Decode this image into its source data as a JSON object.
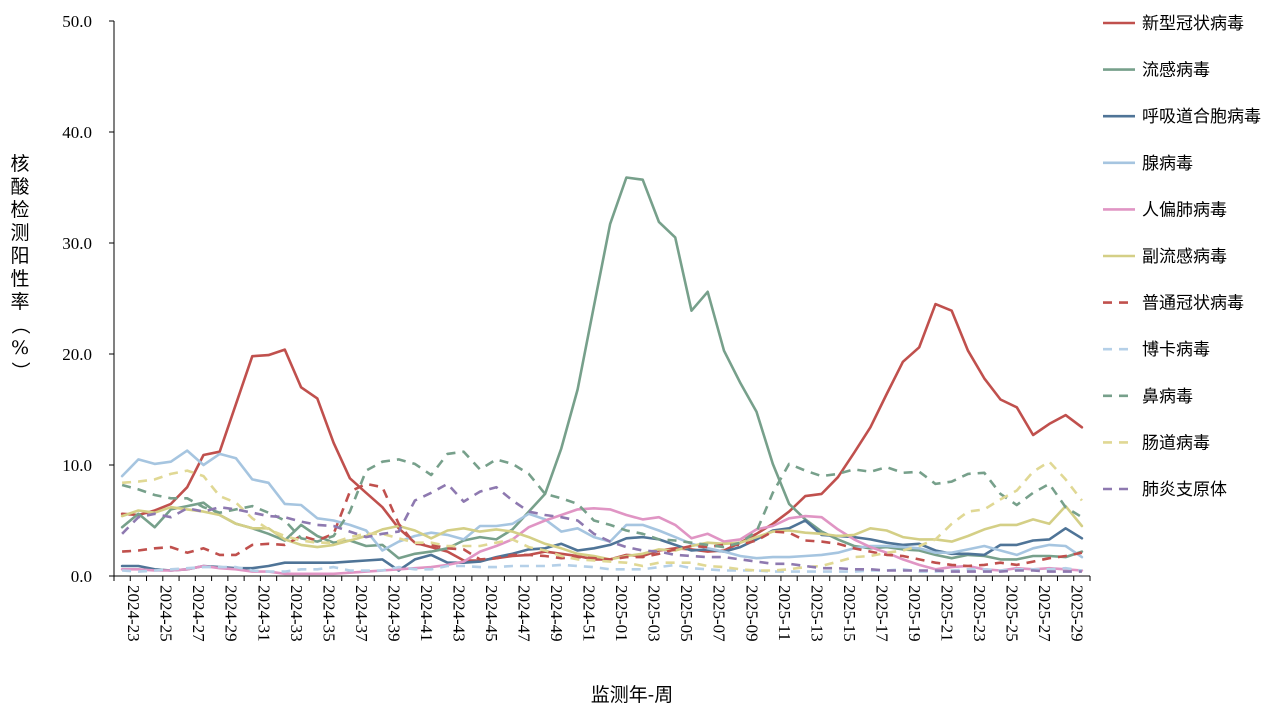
{
  "chart_data": {
    "type": "line",
    "xlabel": "监测年-周",
    "ylabel": "核酸检测阳性率（%）",
    "ylim": [
      0,
      50
    ],
    "yticks": [
      "0.0",
      "10.0",
      "20.0",
      "30.0",
      "40.0",
      "50.0"
    ],
    "x": [
      "2024-23",
      "2024-24",
      "2024-25",
      "2024-26",
      "2024-27",
      "2024-28",
      "2024-29",
      "2024-30",
      "2024-31",
      "2024-32",
      "2024-33",
      "2024-34",
      "2024-35",
      "2024-36",
      "2024-37",
      "2024-38",
      "2024-39",
      "2024-40",
      "2024-41",
      "2024-42",
      "2024-43",
      "2024-44",
      "2024-45",
      "2024-46",
      "2024-47",
      "2024-48",
      "2024-49",
      "2024-50",
      "2024-51",
      "2024-52",
      "2025-01",
      "2025-02",
      "2025-03",
      "2025-04",
      "2025-05",
      "2025-06",
      "2025-07",
      "2025-08",
      "2025-09",
      "2025-10",
      "2025-11",
      "2025-12",
      "2025-13",
      "2025-14",
      "2025-15",
      "2025-16",
      "2025-17",
      "2025-18",
      "2025-19",
      "2025-20",
      "2025-21",
      "2025-22",
      "2025-23",
      "2025-24",
      "2025-25",
      "2025-26",
      "2025-27",
      "2025-28",
      "2025-29",
      "2025-30"
    ],
    "x_tick_labels": [
      "2024-23",
      "2024-25",
      "2024-27",
      "2024-29",
      "2024-31",
      "2024-33",
      "2024-35",
      "2024-37",
      "2024-39",
      "2024-41",
      "2024-43",
      "2024-45",
      "2024-47",
      "2024-49",
      "2024-51",
      "2025-01",
      "2025-03",
      "2025-05",
      "2025-07",
      "2025-09",
      "2025-11",
      "2025-13",
      "2025-15",
      "2025-17",
      "2025-19",
      "2025-21",
      "2025-23",
      "2025-25",
      "2025-27",
      "2025-29"
    ],
    "legend_position": "right",
    "series": [
      {
        "name": "新型冠状病毒",
        "color": "#c0504d",
        "dash": "solid",
        "values": [
          5.6,
          5.5,
          5.9,
          6.5,
          8.0,
          10.9,
          11.2,
          15.5,
          19.8,
          19.9,
          20.4,
          17.0,
          16.0,
          12.0,
          8.8,
          7.5,
          6.2,
          4.3,
          3.0,
          2.6,
          2.2,
          1.4,
          1.4,
          1.6,
          1.8,
          1.9,
          2.2,
          2.0,
          1.8,
          1.5,
          1.5,
          1.9,
          1.8,
          2.3,
          2.5,
          2.4,
          2.2,
          2.3,
          3.0,
          3.8,
          4.7,
          5.8,
          7.2,
          7.4,
          8.9,
          11.1,
          13.4,
          16.4,
          19.3,
          20.6,
          24.5,
          23.9,
          20.3,
          17.8,
          15.9,
          15.2,
          12.7,
          13.7,
          14.5,
          13.4
        ]
      },
      {
        "name": "流感病毒",
        "color": "#77a08b",
        "dash": "solid",
        "values": [
          4.4,
          5.6,
          4.4,
          6.0,
          6.3,
          6.6,
          5.5,
          4.7,
          4.3,
          3.8,
          3.2,
          4.6,
          3.6,
          3.0,
          3.2,
          2.7,
          2.8,
          1.6,
          2.0,
          2.2,
          2.5,
          3.2,
          3.5,
          3.3,
          4.2,
          5.8,
          7.4,
          11.5,
          16.8,
          24.3,
          31.7,
          35.9,
          35.7,
          31.9,
          30.5,
          23.9,
          25.6,
          20.3,
          17.4,
          14.8,
          10.1,
          6.5,
          5.1,
          4.0,
          3.3,
          2.7,
          2.5,
          2.6,
          2.4,
          2.3,
          1.9,
          1.6,
          1.9,
          1.8,
          1.5,
          1.5,
          1.8,
          1.8,
          1.7,
          2.2
        ]
      },
      {
        "name": "呼吸道合胞病毒",
        "color": "#4f7497",
        "dash": "solid",
        "values": [
          0.9,
          0.9,
          0.6,
          0.5,
          0.6,
          0.9,
          0.8,
          0.7,
          0.7,
          0.9,
          1.2,
          1.2,
          1.2,
          1.2,
          1.3,
          1.4,
          1.5,
          0.5,
          1.5,
          1.9,
          1.2,
          1.2,
          1.3,
          1.7,
          2.0,
          2.4,
          2.5,
          2.9,
          2.3,
          2.5,
          2.8,
          3.4,
          3.5,
          3.3,
          2.8,
          2.3,
          2.4,
          2.2,
          2.6,
          3.3,
          4.1,
          4.3,
          5.0,
          3.7,
          3.6,
          3.5,
          3.3,
          3.0,
          2.8,
          2.9,
          2.3,
          2.0,
          2.0,
          1.9,
          2.8,
          2.8,
          3.2,
          3.3,
          4.3,
          3.4
        ]
      },
      {
        "name": "腺病毒",
        "color": "#a6c5e0",
        "dash": "solid",
        "values": [
          9.0,
          10.5,
          10.1,
          10.3,
          11.3,
          10.0,
          11.0,
          10.6,
          8.7,
          8.4,
          6.5,
          6.4,
          5.2,
          5.0,
          4.6,
          4.1,
          2.3,
          3.1,
          3.6,
          3.9,
          3.7,
          3.3,
          4.5,
          4.5,
          4.7,
          5.6,
          5.1,
          4.0,
          4.3,
          3.5,
          3.1,
          4.6,
          4.6,
          4.1,
          3.5,
          2.9,
          2.5,
          2.2,
          1.8,
          1.6,
          1.7,
          1.7,
          1.8,
          1.9,
          2.1,
          2.5,
          2.7,
          2.7,
          2.6,
          2.5,
          2.1,
          2.1,
          2.4,
          2.7,
          2.3,
          1.9,
          2.5,
          2.8,
          2.7,
          1.7
        ]
      },
      {
        "name": "人偏肺病毒",
        "color": "#e095c4",
        "dash": "solid",
        "values": [
          0.6,
          0.6,
          0.5,
          0.5,
          0.6,
          0.9,
          0.7,
          0.6,
          0.4,
          0.4,
          0.2,
          0.2,
          0.2,
          0.2,
          0.3,
          0.4,
          0.5,
          0.6,
          0.7,
          0.8,
          1.0,
          1.3,
          2.2,
          2.7,
          3.3,
          4.4,
          5.0,
          5.5,
          6.0,
          6.1,
          6.0,
          5.5,
          5.1,
          5.3,
          4.6,
          3.4,
          3.8,
          3.1,
          3.3,
          4.2,
          4.5,
          5.2,
          5.4,
          5.3,
          4.2,
          3.3,
          2.6,
          2.1,
          1.5,
          1.0,
          0.6,
          0.8,
          0.9,
          0.6,
          0.5,
          0.7,
          0.6,
          0.7,
          0.6,
          0.5
        ]
      },
      {
        "name": "副流感病毒",
        "color": "#d4cf86",
        "dash": "solid",
        "values": [
          5.4,
          5.9,
          5.7,
          6.2,
          6.0,
          5.8,
          5.5,
          4.7,
          4.3,
          4.3,
          3.3,
          2.8,
          2.6,
          2.8,
          3.2,
          3.6,
          4.2,
          4.5,
          4.1,
          3.4,
          4.1,
          4.3,
          4.0,
          4.2,
          4.0,
          3.5,
          2.9,
          2.5,
          2.0,
          1.8,
          1.5,
          1.8,
          2.0,
          2.4,
          2.3,
          2.7,
          3.0,
          2.9,
          3.0,
          3.5,
          4.0,
          4.1,
          3.9,
          3.8,
          3.6,
          3.7,
          4.3,
          4.1,
          3.5,
          3.3,
          3.3,
          3.1,
          3.6,
          4.2,
          4.6,
          4.6,
          5.1,
          4.7,
          6.3,
          4.5
        ]
      },
      {
        "name": "普通冠状病毒",
        "color": "#c0504d",
        "dash": "dashed",
        "values": [
          2.2,
          2.3,
          2.5,
          2.6,
          2.1,
          2.5,
          1.9,
          1.9,
          2.8,
          2.9,
          2.8,
          3.6,
          3.2,
          3.8,
          7.6,
          8.3,
          8.0,
          4.7,
          2.9,
          2.8,
          2.5,
          2.4,
          1.5,
          1.6,
          1.9,
          1.9,
          1.8,
          1.6,
          1.7,
          1.6,
          1.5,
          1.7,
          1.7,
          2.0,
          2.4,
          2.7,
          2.6,
          2.8,
          2.8,
          3.2,
          4.0,
          3.9,
          3.2,
          3.1,
          2.9,
          2.5,
          2.2,
          1.9,
          1.8,
          1.5,
          1.2,
          1.0,
          0.9,
          1.0,
          1.2,
          1.0,
          1.3,
          1.6,
          1.8,
          2.1
        ]
      },
      {
        "name": "博卡病毒",
        "color": "#b5d0e8",
        "dash": "dashed",
        "values": [
          0.5,
          0.4,
          0.5,
          0.6,
          0.7,
          0.8,
          0.8,
          0.8,
          0.5,
          0.4,
          0.4,
          0.6,
          0.6,
          0.8,
          0.5,
          0.5,
          0.5,
          0.8,
          0.6,
          0.6,
          0.9,
          0.9,
          0.8,
          0.8,
          0.9,
          0.9,
          0.9,
          1.0,
          0.9,
          0.8,
          0.6,
          0.6,
          0.6,
          0.8,
          1.0,
          0.7,
          0.6,
          0.5,
          0.5,
          0.5,
          0.4,
          0.4,
          0.4,
          0.4,
          0.4,
          0.4,
          0.5,
          0.5,
          0.6,
          0.4,
          0.4,
          0.5,
          0.6,
          0.6,
          0.5,
          0.6,
          0.6,
          0.6,
          0.7,
          0.5
        ]
      },
      {
        "name": "鼻病毒",
        "color": "#77a08b",
        "dash": "dashed",
        "values": [
          8.2,
          7.8,
          7.3,
          7.0,
          7.0,
          6.2,
          5.7,
          6.0,
          6.3,
          5.7,
          5.0,
          3.4,
          3.1,
          3.6,
          5.8,
          9.5,
          10.3,
          10.5,
          10.1,
          9.1,
          11.0,
          11.2,
          9.6,
          10.5,
          10.1,
          9.2,
          7.4,
          7.0,
          6.5,
          5.0,
          4.6,
          4.1,
          3.8,
          3.3,
          3.2,
          3.0,
          2.8,
          2.6,
          3.0,
          4.0,
          7.5,
          10.1,
          9.5,
          9.0,
          9.2,
          9.6,
          9.4,
          9.8,
          9.3,
          9.4,
          8.3,
          8.5,
          9.2,
          9.3,
          7.4,
          6.4,
          7.5,
          8.3,
          6.2,
          5.3
        ]
      },
      {
        "name": "肠道病毒",
        "color": "#e0d894",
        "dash": "dashed",
        "values": [
          8.4,
          8.5,
          8.7,
          9.2,
          9.5,
          9.0,
          7.2,
          6.6,
          5.2,
          4.2,
          3.6,
          3.2,
          3.0,
          3.0,
          3.5,
          3.8,
          3.8,
          3.4,
          3.0,
          3.0,
          2.7,
          2.7,
          2.7,
          3.0,
          3.3,
          2.6,
          2.3,
          1.8,
          1.5,
          1.4,
          1.3,
          1.2,
          0.9,
          1.2,
          1.2,
          1.2,
          0.9,
          0.8,
          0.6,
          0.5,
          0.5,
          0.6,
          0.8,
          0.9,
          1.3,
          1.7,
          1.8,
          2.1,
          2.3,
          2.7,
          3.3,
          4.7,
          5.8,
          6.0,
          6.9,
          7.7,
          9.4,
          10.3,
          8.7,
          6.8
        ]
      },
      {
        "name": "肺炎支原体",
        "color": "#8e79b0",
        "dash": "dashed",
        "values": [
          3.8,
          5.3,
          5.6,
          5.3,
          6.1,
          5.8,
          6.2,
          6.0,
          5.7,
          5.4,
          5.3,
          4.9,
          4.6,
          4.5,
          4.0,
          3.5,
          3.8,
          4.0,
          6.8,
          7.5,
          8.3,
          6.7,
          7.6,
          8.0,
          6.8,
          5.8,
          5.5,
          5.3,
          5.0,
          3.8,
          3.1,
          2.6,
          2.3,
          2.2,
          1.9,
          1.8,
          1.7,
          1.7,
          1.5,
          1.3,
          1.1,
          1.1,
          0.9,
          0.7,
          0.7,
          0.6,
          0.6,
          0.5,
          0.5,
          0.5,
          0.5,
          0.4,
          0.4,
          0.4,
          0.4,
          0.5,
          0.5,
          0.4,
          0.4,
          0.4
        ]
      }
    ]
  }
}
